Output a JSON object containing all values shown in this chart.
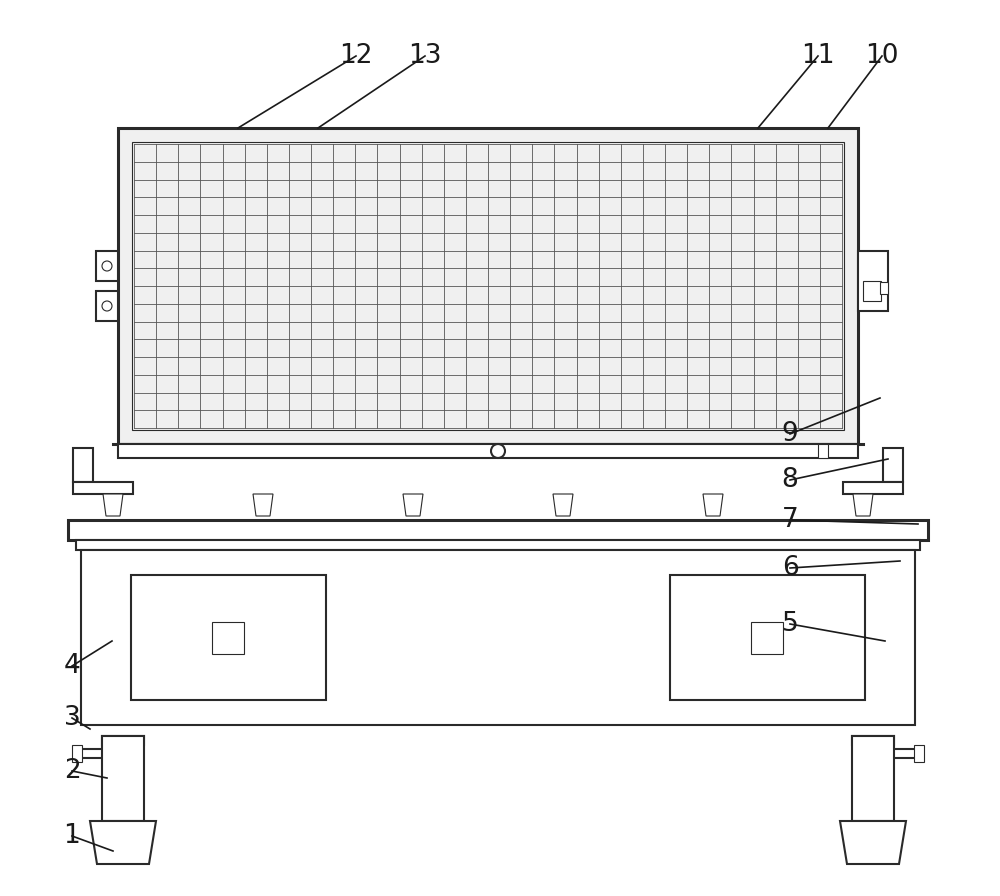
{
  "bg_color": "white",
  "line_color": "#2a2a2a",
  "lw_thin": 0.8,
  "lw_med": 1.5,
  "lw_thick": 2.2,
  "label_fs": 19,
  "arrow_lw": 1.2,
  "label_color": "#1a1a1a",
  "mesh_color": "#555555",
  "mesh_lw": 0.6,
  "fig_width": 10.0,
  "fig_height": 8.96
}
